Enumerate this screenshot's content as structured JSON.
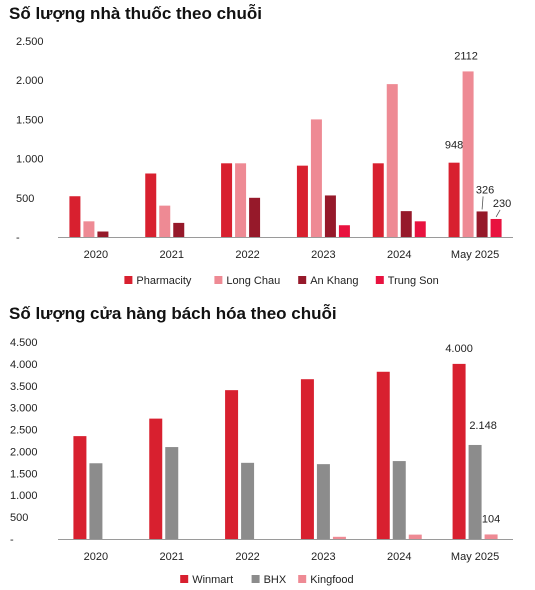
{
  "chart_data": [
    {
      "type": "bar",
      "title": "Số lượng nhà thuốc theo chuỗi",
      "categories": [
        "2020",
        "2021",
        "2022",
        "2023",
        "2024",
        "May 2025"
      ],
      "ylim": [
        0,
        2500
      ],
      "yticks": [
        "-",
        "500",
        "1.000",
        "1.500",
        "2.000",
        "2.500"
      ],
      "grid": false,
      "legend_position": "bottom",
      "series": [
        {
          "name": "Pharmacity",
          "color": "#d8202f",
          "values": [
            520,
            810,
            940,
            910,
            940,
            948
          ]
        },
        {
          "name": "Long Chau",
          "color": "#ee8a94",
          "values": [
            200,
            400,
            940,
            1500,
            1950,
            2112
          ]
        },
        {
          "name": "An Khang",
          "color": "#96192a",
          "values": [
            70,
            180,
            500,
            530,
            330,
            326
          ]
        },
        {
          "name": "Trung Son",
          "color": "#e8123f",
          "values": [
            0,
            0,
            0,
            150,
            200,
            230
          ]
        }
      ],
      "data_labels": [
        {
          "category": "May 2025",
          "series": "Pharmacity",
          "text": "948"
        },
        {
          "category": "May 2025",
          "series": "Long Chau",
          "text": "2112"
        },
        {
          "category": "May 2025",
          "series": "An Khang",
          "text": "326"
        },
        {
          "category": "May 2025",
          "series": "Trung Son",
          "text": "230"
        }
      ]
    },
    {
      "type": "bar",
      "title": "Số lượng cửa hàng bách hóa theo chuỗi",
      "categories": [
        "2020",
        "2021",
        "2022",
        "2023",
        "2024",
        "May 2025"
      ],
      "ylim": [
        0,
        4500
      ],
      "yticks": [
        "-",
        "500",
        "1.000",
        "1.500",
        "2.000",
        "2.500",
        "3.000",
        "3.500",
        "4.000",
        "4.500"
      ],
      "grid": false,
      "legend_position": "bottom",
      "series": [
        {
          "name": "Winmart",
          "color": "#d8202f",
          "values": [
            2350,
            2750,
            3400,
            3650,
            3820,
            4000
          ]
        },
        {
          "name": "BHX",
          "color": "#8c8c8c",
          "values": [
            1730,
            2100,
            1740,
            1710,
            1780,
            2148
          ]
        },
        {
          "name": "Kingfood",
          "color": "#ee8a94",
          "values": [
            0,
            0,
            0,
            50,
            100,
            104
          ]
        }
      ],
      "data_labels": [
        {
          "category": "May 2025",
          "series": "Winmart",
          "text": "4.000"
        },
        {
          "category": "May 2025",
          "series": "BHX",
          "text": "2.148"
        },
        {
          "category": "May 2025",
          "series": "Kingfood",
          "text": "104"
        }
      ]
    }
  ]
}
